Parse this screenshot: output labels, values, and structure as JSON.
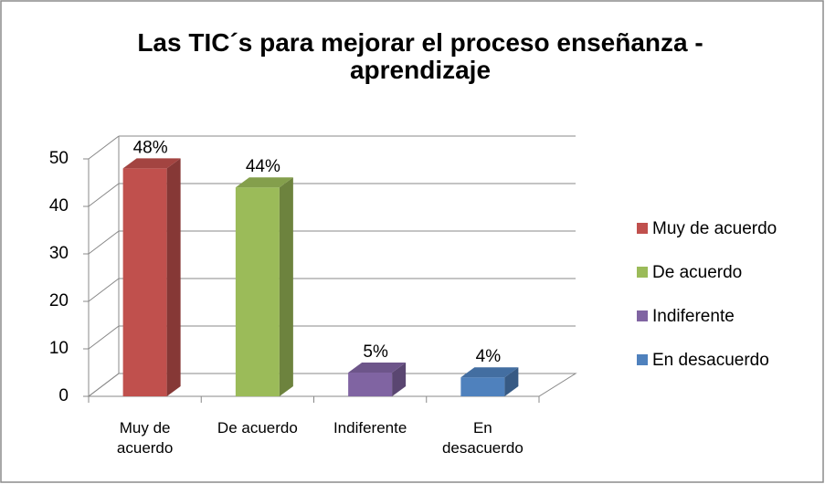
{
  "chart_data": {
    "type": "bar3d",
    "title": "Las TIC´s para mejorar el proceso enseñanza - aprendizaje",
    "categories": [
      "Muy de acuerdo",
      "De acuerdo",
      "Indiferente",
      "En desacuerdo"
    ],
    "values": [
      48,
      44,
      5,
      4
    ],
    "value_labels": [
      "48%",
      "44%",
      "5%",
      "4%"
    ],
    "colors": [
      "#c0504d",
      "#9bbb59",
      "#8064a2",
      "#4f81bd"
    ],
    "ylim": [
      0,
      50
    ],
    "yticks": [
      0,
      10,
      20,
      30,
      40,
      50
    ],
    "grid": true,
    "legend": "right"
  }
}
